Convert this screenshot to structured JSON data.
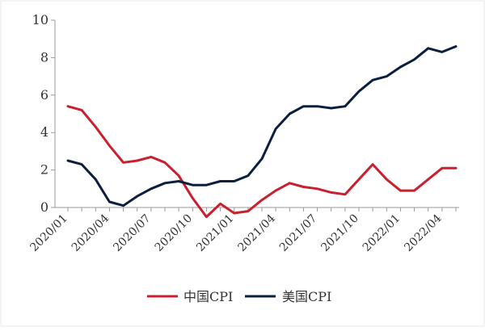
{
  "chart_data": {
    "type": "line",
    "x_tick_labels": [
      "2020/01",
      "2020/04",
      "2020/07",
      "2020/10",
      "2021/01",
      "2021/04",
      "2021/07",
      "2021/10",
      "2022/01",
      "2022/04"
    ],
    "y_ticks": [
      0,
      2,
      4,
      6,
      8,
      10
    ],
    "ylim": [
      -1,
      10
    ],
    "x": [
      "2020/01",
      "2020/02",
      "2020/03",
      "2020/04",
      "2020/05",
      "2020/06",
      "2020/07",
      "2020/08",
      "2020/09",
      "2020/10",
      "2020/11",
      "2020/12",
      "2021/01",
      "2021/02",
      "2021/03",
      "2021/04",
      "2021/05",
      "2021/06",
      "2021/07",
      "2021/08",
      "2021/09",
      "2021/10",
      "2021/11",
      "2021/12",
      "2022/01",
      "2022/02",
      "2022/03",
      "2022/04",
      "2022/05"
    ],
    "series": [
      {
        "name": "中国CPI",
        "color": "#c8202e",
        "values": [
          5.4,
          5.2,
          4.3,
          3.3,
          2.4,
          2.5,
          2.7,
          2.4,
          1.7,
          0.5,
          -0.5,
          0.2,
          -0.3,
          -0.2,
          0.4,
          0.9,
          1.3,
          1.1,
          1.0,
          0.8,
          0.7,
          1.5,
          2.3,
          1.5,
          0.9,
          0.9,
          1.5,
          2.1,
          2.1
        ]
      },
      {
        "name": "美国CPI",
        "color": "#0c1f3f",
        "values": [
          2.5,
          2.3,
          1.5,
          0.3,
          0.1,
          0.6,
          1.0,
          1.3,
          1.4,
          1.2,
          1.2,
          1.4,
          1.4,
          1.7,
          2.6,
          4.2,
          5.0,
          5.4,
          5.4,
          5.3,
          5.4,
          6.2,
          6.8,
          7.0,
          7.5,
          7.9,
          8.5,
          8.3,
          8.6
        ]
      }
    ],
    "legend_position": "bottom",
    "grid": false
  }
}
